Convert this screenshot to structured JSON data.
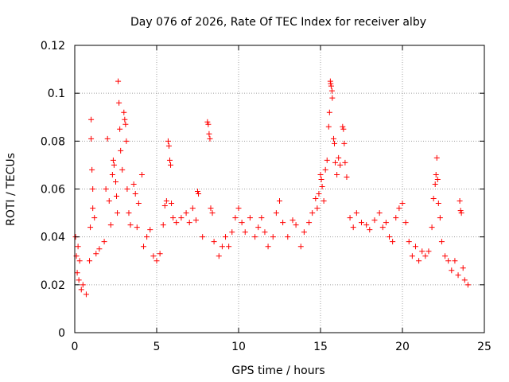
{
  "chart_data": {
    "type": "scatter",
    "title": "Day 076 of 2026, Rate Of TEC Index for receiver alby",
    "xlabel": "GPS time / hours",
    "ylabel": "ROTI / TECUs",
    "xlim": [
      0,
      25
    ],
    "ylim": [
      0,
      0.12
    ],
    "xticks": [
      "0",
      "5",
      "10",
      "15",
      "20",
      "25"
    ],
    "yticks": [
      "0",
      "0.02",
      "0.04",
      "0.06",
      "0.08",
      "0.1",
      "0.12"
    ],
    "grid": true,
    "marker": "plus",
    "color": "#ff0000",
    "points": [
      [
        0.05,
        0.04
      ],
      [
        0.1,
        0.032
      ],
      [
        0.15,
        0.025
      ],
      [
        0.2,
        0.036
      ],
      [
        0.25,
        0.022
      ],
      [
        0.3,
        0.03
      ],
      [
        0.4,
        0.018
      ],
      [
        0.5,
        0.02
      ],
      [
        0.7,
        0.016
      ],
      [
        0.9,
        0.03
      ],
      [
        0.95,
        0.044
      ],
      [
        1.0,
        0.089
      ],
      [
        1.0,
        0.081
      ],
      [
        1.05,
        0.068
      ],
      [
        1.1,
        0.06
      ],
      [
        1.1,
        0.052
      ],
      [
        1.2,
        0.048
      ],
      [
        1.3,
        0.033
      ],
      [
        1.5,
        0.035
      ],
      [
        1.8,
        0.038
      ],
      [
        1.9,
        0.06
      ],
      [
        2.0,
        0.081
      ],
      [
        2.1,
        0.055
      ],
      [
        2.2,
        0.045
      ],
      [
        2.3,
        0.066
      ],
      [
        2.35,
        0.072
      ],
      [
        2.4,
        0.07
      ],
      [
        2.5,
        0.063
      ],
      [
        2.55,
        0.057
      ],
      [
        2.6,
        0.05
      ],
      [
        2.65,
        0.105
      ],
      [
        2.7,
        0.096
      ],
      [
        2.75,
        0.085
      ],
      [
        2.8,
        0.076
      ],
      [
        2.9,
        0.068
      ],
      [
        3.0,
        0.092
      ],
      [
        3.05,
        0.089
      ],
      [
        3.1,
        0.087
      ],
      [
        3.15,
        0.08
      ],
      [
        3.2,
        0.06
      ],
      [
        3.3,
        0.05
      ],
      [
        3.4,
        0.045
      ],
      [
        3.6,
        0.062
      ],
      [
        3.7,
        0.058
      ],
      [
        3.8,
        0.044
      ],
      [
        3.9,
        0.054
      ],
      [
        4.1,
        0.066
      ],
      [
        4.2,
        0.036
      ],
      [
        4.4,
        0.04
      ],
      [
        4.6,
        0.043
      ],
      [
        4.8,
        0.032
      ],
      [
        5.0,
        0.03
      ],
      [
        5.2,
        0.033
      ],
      [
        5.4,
        0.045
      ],
      [
        5.5,
        0.053
      ],
      [
        5.6,
        0.055
      ],
      [
        5.7,
        0.08
      ],
      [
        5.75,
        0.078
      ],
      [
        5.8,
        0.072
      ],
      [
        5.85,
        0.07
      ],
      [
        5.9,
        0.054
      ],
      [
        6.0,
        0.048
      ],
      [
        6.2,
        0.046
      ],
      [
        6.5,
        0.048
      ],
      [
        6.8,
        0.05
      ],
      [
        7.0,
        0.046
      ],
      [
        7.2,
        0.052
      ],
      [
        7.4,
        0.047
      ],
      [
        7.5,
        0.059
      ],
      [
        7.55,
        0.058
      ],
      [
        7.8,
        0.04
      ],
      [
        8.1,
        0.088
      ],
      [
        8.15,
        0.087
      ],
      [
        8.2,
        0.083
      ],
      [
        8.25,
        0.081
      ],
      [
        8.3,
        0.052
      ],
      [
        8.4,
        0.05
      ],
      [
        8.5,
        0.038
      ],
      [
        8.8,
        0.032
      ],
      [
        9.0,
        0.036
      ],
      [
        9.2,
        0.04
      ],
      [
        9.4,
        0.036
      ],
      [
        9.6,
        0.042
      ],
      [
        9.8,
        0.048
      ],
      [
        10.0,
        0.052
      ],
      [
        10.2,
        0.046
      ],
      [
        10.4,
        0.042
      ],
      [
        10.7,
        0.048
      ],
      [
        11.0,
        0.04
      ],
      [
        11.2,
        0.044
      ],
      [
        11.4,
        0.048
      ],
      [
        11.6,
        0.042
      ],
      [
        11.8,
        0.036
      ],
      [
        12.1,
        0.04
      ],
      [
        12.3,
        0.05
      ],
      [
        12.5,
        0.055
      ],
      [
        12.7,
        0.046
      ],
      [
        13.0,
        0.04
      ],
      [
        13.3,
        0.047
      ],
      [
        13.5,
        0.045
      ],
      [
        13.8,
        0.036
      ],
      [
        14.0,
        0.042
      ],
      [
        14.3,
        0.046
      ],
      [
        14.5,
        0.05
      ],
      [
        14.7,
        0.056
      ],
      [
        14.8,
        0.052
      ],
      [
        14.9,
        0.058
      ],
      [
        15.0,
        0.066
      ],
      [
        15.05,
        0.064
      ],
      [
        15.1,
        0.061
      ],
      [
        15.2,
        0.055
      ],
      [
        15.3,
        0.068
      ],
      [
        15.4,
        0.072
      ],
      [
        15.5,
        0.086
      ],
      [
        15.55,
        0.092
      ],
      [
        15.6,
        0.105
      ],
      [
        15.62,
        0.104
      ],
      [
        15.65,
        0.103
      ],
      [
        15.7,
        0.101
      ],
      [
        15.72,
        0.098
      ],
      [
        15.8,
        0.081
      ],
      [
        15.85,
        0.079
      ],
      [
        15.9,
        0.071
      ],
      [
        16.0,
        0.066
      ],
      [
        16.1,
        0.073
      ],
      [
        16.2,
        0.07
      ],
      [
        16.35,
        0.086
      ],
      [
        16.4,
        0.085
      ],
      [
        16.45,
        0.079
      ],
      [
        16.5,
        0.071
      ],
      [
        16.6,
        0.065
      ],
      [
        16.8,
        0.048
      ],
      [
        17.0,
        0.044
      ],
      [
        17.2,
        0.05
      ],
      [
        17.5,
        0.046
      ],
      [
        17.8,
        0.045
      ],
      [
        18.0,
        0.043
      ],
      [
        18.3,
        0.047
      ],
      [
        18.6,
        0.05
      ],
      [
        18.8,
        0.044
      ],
      [
        19.0,
        0.046
      ],
      [
        19.2,
        0.04
      ],
      [
        19.4,
        0.038
      ],
      [
        19.6,
        0.048
      ],
      [
        19.8,
        0.052
      ],
      [
        20.0,
        0.054
      ],
      [
        20.2,
        0.046
      ],
      [
        20.4,
        0.038
      ],
      [
        20.6,
        0.032
      ],
      [
        20.8,
        0.036
      ],
      [
        21.0,
        0.03
      ],
      [
        21.2,
        0.034
      ],
      [
        21.4,
        0.032
      ],
      [
        21.6,
        0.034
      ],
      [
        21.8,
        0.044
      ],
      [
        21.9,
        0.056
      ],
      [
        22.0,
        0.062
      ],
      [
        22.05,
        0.066
      ],
      [
        22.1,
        0.073
      ],
      [
        22.15,
        0.064
      ],
      [
        22.2,
        0.054
      ],
      [
        22.3,
        0.048
      ],
      [
        22.4,
        0.038
      ],
      [
        22.6,
        0.032
      ],
      [
        22.8,
        0.03
      ],
      [
        23.0,
        0.026
      ],
      [
        23.2,
        0.03
      ],
      [
        23.4,
        0.024
      ],
      [
        23.5,
        0.055
      ],
      [
        23.55,
        0.051
      ],
      [
        23.6,
        0.05
      ],
      [
        23.7,
        0.027
      ],
      [
        23.8,
        0.022
      ],
      [
        24.0,
        0.02
      ]
    ]
  }
}
